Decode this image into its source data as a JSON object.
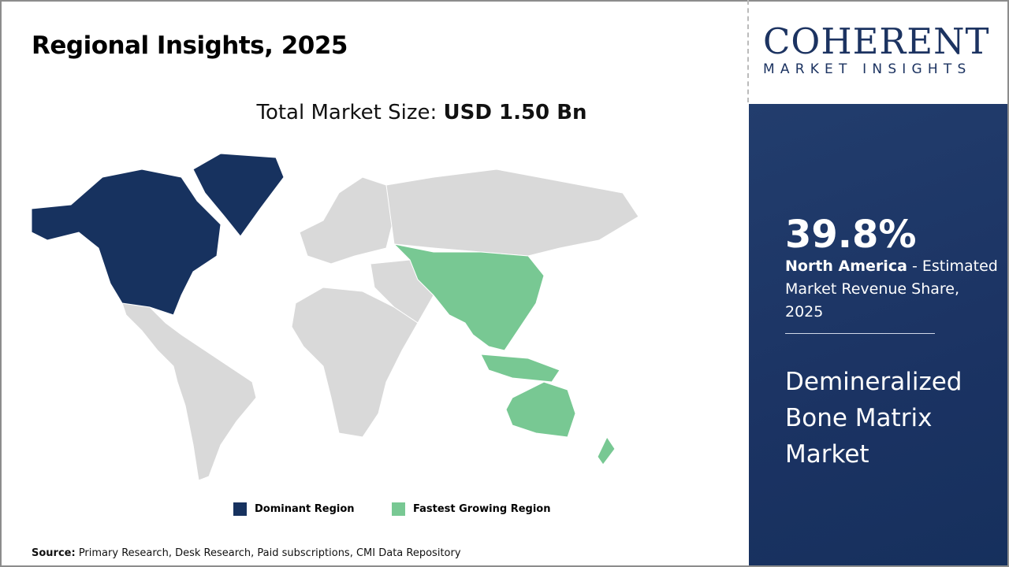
{
  "title": "Regional Insights, 2025",
  "total": {
    "label": "Total Market Size: ",
    "value": "USD 1.50 Bn"
  },
  "legend": [
    {
      "label": "Dominant Region",
      "color": "#17325f"
    },
    {
      "label": "Fastest Growing Region",
      "color": "#78c893"
    }
  ],
  "map_colors": {
    "default": "#d9d9d9",
    "dominant": "#17325f",
    "fastest": "#78c893"
  },
  "source": {
    "label": "Source:",
    "text": " Primary Research, Desk Research, Paid subscriptions, CMI Data Repository"
  },
  "logo": {
    "big": "COHERENT",
    "small": "MARKET INSIGHTS"
  },
  "panel": {
    "percent": "39.8%",
    "region": "North America",
    "desc": " - Estimated Market Revenue Share, 2025",
    "market": "Demineralized Bone Matrix Market"
  }
}
